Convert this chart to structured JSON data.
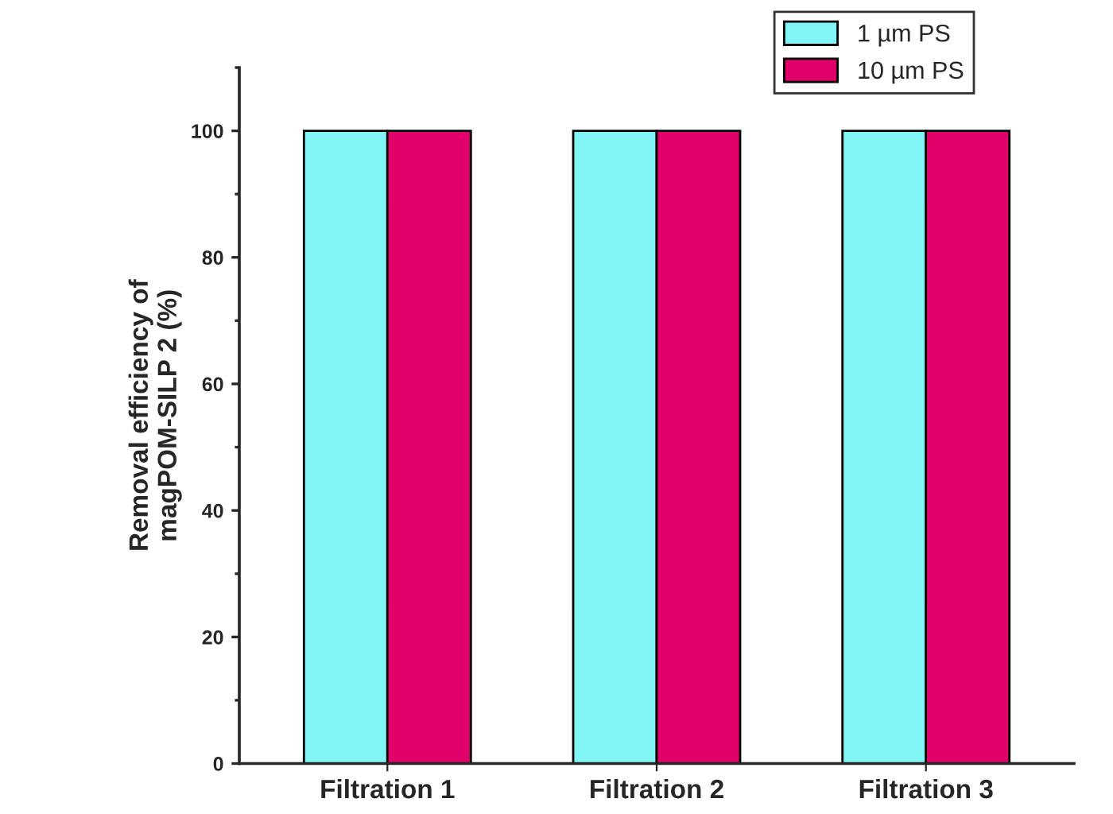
{
  "chart_data": {
    "type": "bar",
    "ylabel": "Removal efficiency of\nmagPOM-SILP 2 (%)",
    "categories": [
      "Filtration 1",
      "Filtration 2",
      "Filtration 3"
    ],
    "series": [
      {
        "name": "1 µm PS",
        "color": "#7ff5f5",
        "values": [
          100,
          100,
          100
        ]
      },
      {
        "name": "10 µm PS",
        "color": "#e0006a",
        "values": [
          100,
          100,
          100
        ]
      }
    ],
    "ylim": [
      0,
      110
    ],
    "yticks": [
      0,
      20,
      40,
      60,
      80,
      100
    ],
    "grid": false,
    "legend": "top right"
  }
}
